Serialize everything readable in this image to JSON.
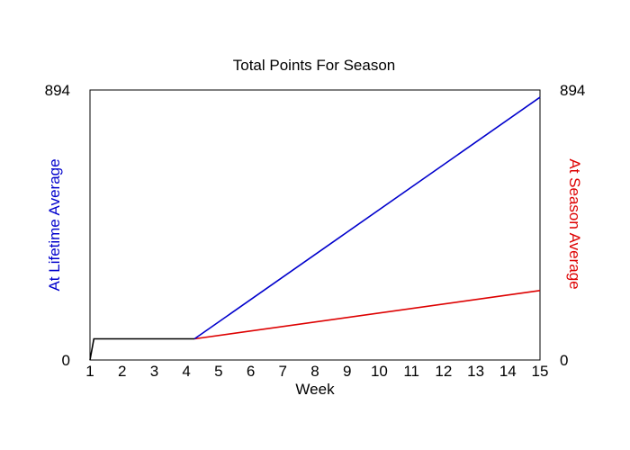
{
  "chart_data": {
    "type": "line",
    "title": "Total Points For Season",
    "xlabel": "Week",
    "ylabel_left": "At Lifetime Average",
    "ylabel_right": "At Season Average",
    "xlim": [
      1,
      15
    ],
    "ylim": [
      0,
      894
    ],
    "x_ticks": [
      "1",
      "2",
      "3",
      "4",
      "5",
      "6",
      "7",
      "8",
      "9",
      "10",
      "11",
      "12",
      "13",
      "14",
      "15"
    ],
    "y_ticks_left": [
      "0",
      "894"
    ],
    "y_ticks_right": [
      "0",
      "894"
    ],
    "grid": false,
    "colors": {
      "actual": "#000000",
      "lifetime": "#0000cc",
      "season": "#dd0000",
      "left_axis_label": "#0000cc",
      "right_axis_label": "#dd0000"
    },
    "series": [
      {
        "key": "actual",
        "x": [
          1,
          1.12,
          4.25
        ],
        "values": [
          0,
          70,
          70
        ]
      },
      {
        "key": "lifetime",
        "x": [
          4.25,
          15
        ],
        "values": [
          70,
          870
        ]
      },
      {
        "key": "season",
        "x": [
          4.25,
          15
        ],
        "values": [
          70,
          230
        ]
      }
    ]
  }
}
